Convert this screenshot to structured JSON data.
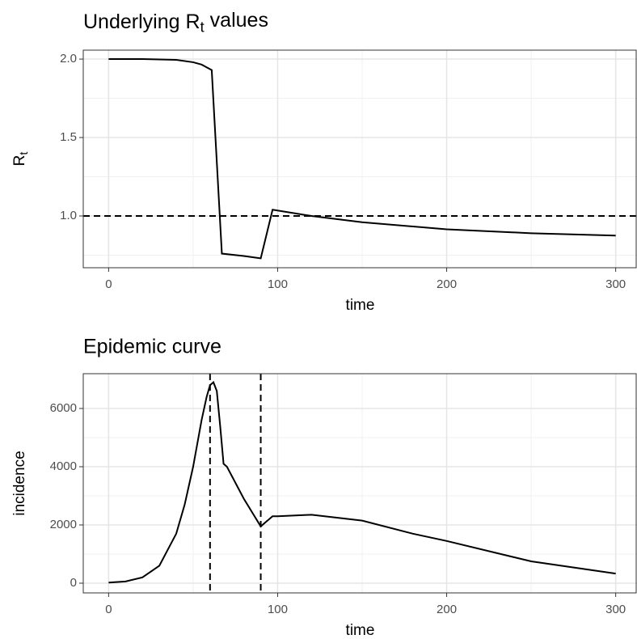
{
  "chart_data": [
    {
      "type": "line",
      "title": {
        "main": "Underlying R",
        "sub": "t",
        "rest": " values"
      },
      "x_label": "time",
      "y_label": {
        "main": "R",
        "sub": "t"
      },
      "x": [
        0,
        20,
        40,
        50,
        55,
        61,
        67,
        80,
        90,
        97,
        120,
        150,
        200,
        250,
        300
      ],
      "series": [
        {
          "color": "#000000",
          "values": [
            2.0,
            2.0,
            1.995,
            1.98,
            1.965,
            1.93,
            0.76,
            0.745,
            0.73,
            1.04,
            1.0,
            0.96,
            0.915,
            0.89,
            0.875
          ]
        }
      ],
      "xlim": [
        -15,
        312.6
      ],
      "ylim": [
        0.67,
        2.057
      ],
      "xticks": [
        0,
        100,
        200,
        300
      ],
      "yticks": [
        {
          "value": 1,
          "label": "1.0"
        },
        1.5,
        {
          "value": 2,
          "label": "2.0"
        }
      ],
      "xminor": [
        50,
        150,
        250
      ],
      "yminor": [
        0.75,
        1.25,
        1.75
      ],
      "hlines": [
        1
      ],
      "vlines": [],
      "grid": true
    },
    {
      "type": "line",
      "title": "Epidemic curve",
      "x_label": "time",
      "y_label": "incidence",
      "x": [
        0,
        10,
        20,
        30,
        40,
        45,
        50,
        55,
        58,
        60,
        62,
        64,
        66,
        68,
        70,
        80,
        90,
        93,
        97,
        100,
        120,
        150,
        180,
        200,
        250,
        300
      ],
      "series": [
        {
          "color": "#000000",
          "values": [
            20,
            60,
            200,
            600,
            1700,
            2700,
            4000,
            5600,
            6400,
            6800,
            6900,
            6600,
            5400,
            4100,
            4000,
            2900,
            1950,
            2100,
            2300,
            2300,
            2350,
            2150,
            1700,
            1450,
            750,
            330
          ]
        }
      ],
      "xlim": [
        -15,
        312.6
      ],
      "ylim": [
        -333,
        7194
      ],
      "xticks": [
        0,
        100,
        200,
        300
      ],
      "yticks": [
        0,
        2000,
        4000,
        6000
      ],
      "xminor": [
        50,
        150,
        250
      ],
      "yminor": [
        1000,
        3000,
        5000
      ],
      "hlines": [],
      "vlines": [
        60,
        90
      ],
      "grid": true
    }
  ]
}
